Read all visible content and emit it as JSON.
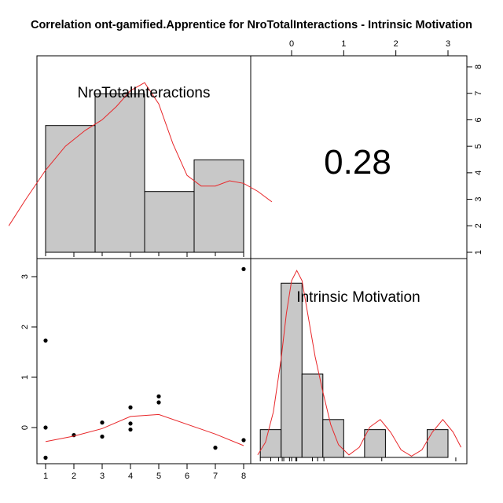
{
  "chart_data": {
    "type": "pairs",
    "title": "Correlation ont-gamified.Apprentice for NroTotalInteractions - Intrinsic Motivation",
    "variables": [
      "NroTotalInteractions",
      "Intrinsic Motivation"
    ],
    "correlation": "0.28",
    "colors": {
      "bars": "#c8c8c8",
      "density": "#e8272a",
      "points": "#000000"
    },
    "histogram_x": {
      "variable": "NroTotalInteractions",
      "bins": [
        {
          "from": 1.0,
          "to": 2.75,
          "count": 4.8
        },
        {
          "from": 2.75,
          "to": 4.5,
          "count": 6.0
        },
        {
          "from": 4.5,
          "to": 6.25,
          "count": 2.3
        },
        {
          "from": 6.25,
          "to": 8.0,
          "count": 3.5
        }
      ],
      "rug": [
        1,
        1,
        1,
        2,
        3,
        3,
        4,
        4,
        4,
        5,
        5,
        7,
        8,
        8
      ],
      "density": [
        [
          -0.3,
          1.0
        ],
        [
          0.3,
          2.0
        ],
        [
          1.0,
          3.1
        ],
        [
          1.7,
          4.0
        ],
        [
          2.4,
          4.6
        ],
        [
          3.0,
          5.0
        ],
        [
          3.5,
          5.5
        ],
        [
          4.0,
          6.1
        ],
        [
          4.5,
          6.4
        ],
        [
          5.0,
          5.6
        ],
        [
          5.5,
          4.1
        ],
        [
          6.0,
          2.9
        ],
        [
          6.5,
          2.5
        ],
        [
          7.0,
          2.5
        ],
        [
          7.5,
          2.7
        ],
        [
          8.0,
          2.6
        ],
        [
          8.5,
          2.3
        ],
        [
          9.0,
          1.9
        ]
      ]
    },
    "histogram_y": {
      "variable": "Intrinsic Motivation",
      "bins": [
        {
          "from": -0.6,
          "to": -0.2,
          "count": 1.1
        },
        {
          "from": -0.2,
          "to": 0.2,
          "count": 6.9
        },
        {
          "from": 0.2,
          "to": 0.6,
          "count": 3.3
        },
        {
          "from": 0.6,
          "to": 1.0,
          "count": 1.5
        },
        {
          "from": 1.0,
          "to": 1.4,
          "count": 0
        },
        {
          "from": 1.4,
          "to": 1.8,
          "count": 1.1
        },
        {
          "from": 1.8,
          "to": 2.6,
          "count": 0
        },
        {
          "from": 2.6,
          "to": 3.0,
          "count": 1.1
        }
      ],
      "rug": [
        -0.6,
        -0.4,
        -0.25,
        -0.18,
        -0.15,
        -0.04,
        0.0,
        0.08,
        0.1,
        0.4,
        0.5,
        0.62,
        1.73,
        3.15
      ],
      "density": [
        [
          -0.65,
          0.1
        ],
        [
          -0.5,
          0.6
        ],
        [
          -0.35,
          1.8
        ],
        [
          -0.2,
          3.9
        ],
        [
          -0.1,
          5.7
        ],
        [
          0.0,
          7.0
        ],
        [
          0.1,
          7.4
        ],
        [
          0.2,
          7.0
        ],
        [
          0.3,
          5.8
        ],
        [
          0.45,
          4.0
        ],
        [
          0.6,
          2.6
        ],
        [
          0.75,
          1.3
        ],
        [
          0.9,
          0.5
        ],
        [
          1.1,
          0.1
        ],
        [
          1.3,
          0.4
        ],
        [
          1.5,
          1.2
        ],
        [
          1.7,
          1.5
        ],
        [
          1.9,
          1.0
        ],
        [
          2.1,
          0.3
        ],
        [
          2.3,
          0.05
        ],
        [
          2.5,
          0.3
        ],
        [
          2.7,
          1.0
        ],
        [
          2.9,
          1.5
        ],
        [
          3.1,
          1.0
        ],
        [
          3.25,
          0.4
        ]
      ]
    },
    "scatter": {
      "x": [
        1,
        1,
        1,
        2,
        3,
        3,
        4,
        4,
        4,
        5,
        5,
        7,
        8,
        8
      ],
      "y": [
        1.73,
        -0.0,
        -0.6,
        -0.15,
        0.1,
        -0.18,
        0.4,
        0.08,
        -0.04,
        0.62,
        0.5,
        -0.4,
        3.15,
        -0.25
      ],
      "lowess": [
        [
          1,
          -0.28
        ],
        [
          2,
          -0.17
        ],
        [
          3,
          -0.02
        ],
        [
          4,
          0.22
        ],
        [
          5,
          0.26
        ],
        [
          7,
          -0.13
        ],
        [
          8,
          -0.36
        ]
      ]
    },
    "axes": {
      "bottom_ticks": [
        "1",
        "2",
        "3",
        "4",
        "5",
        "6",
        "7",
        "8"
      ],
      "left_ticks": [
        "0",
        "1",
        "2",
        "3"
      ],
      "top_ticks": [
        "0",
        "1",
        "2",
        "3"
      ],
      "right_ticks": [
        "1",
        "2",
        "3",
        "4",
        "5",
        "6",
        "7",
        "8"
      ]
    }
  }
}
